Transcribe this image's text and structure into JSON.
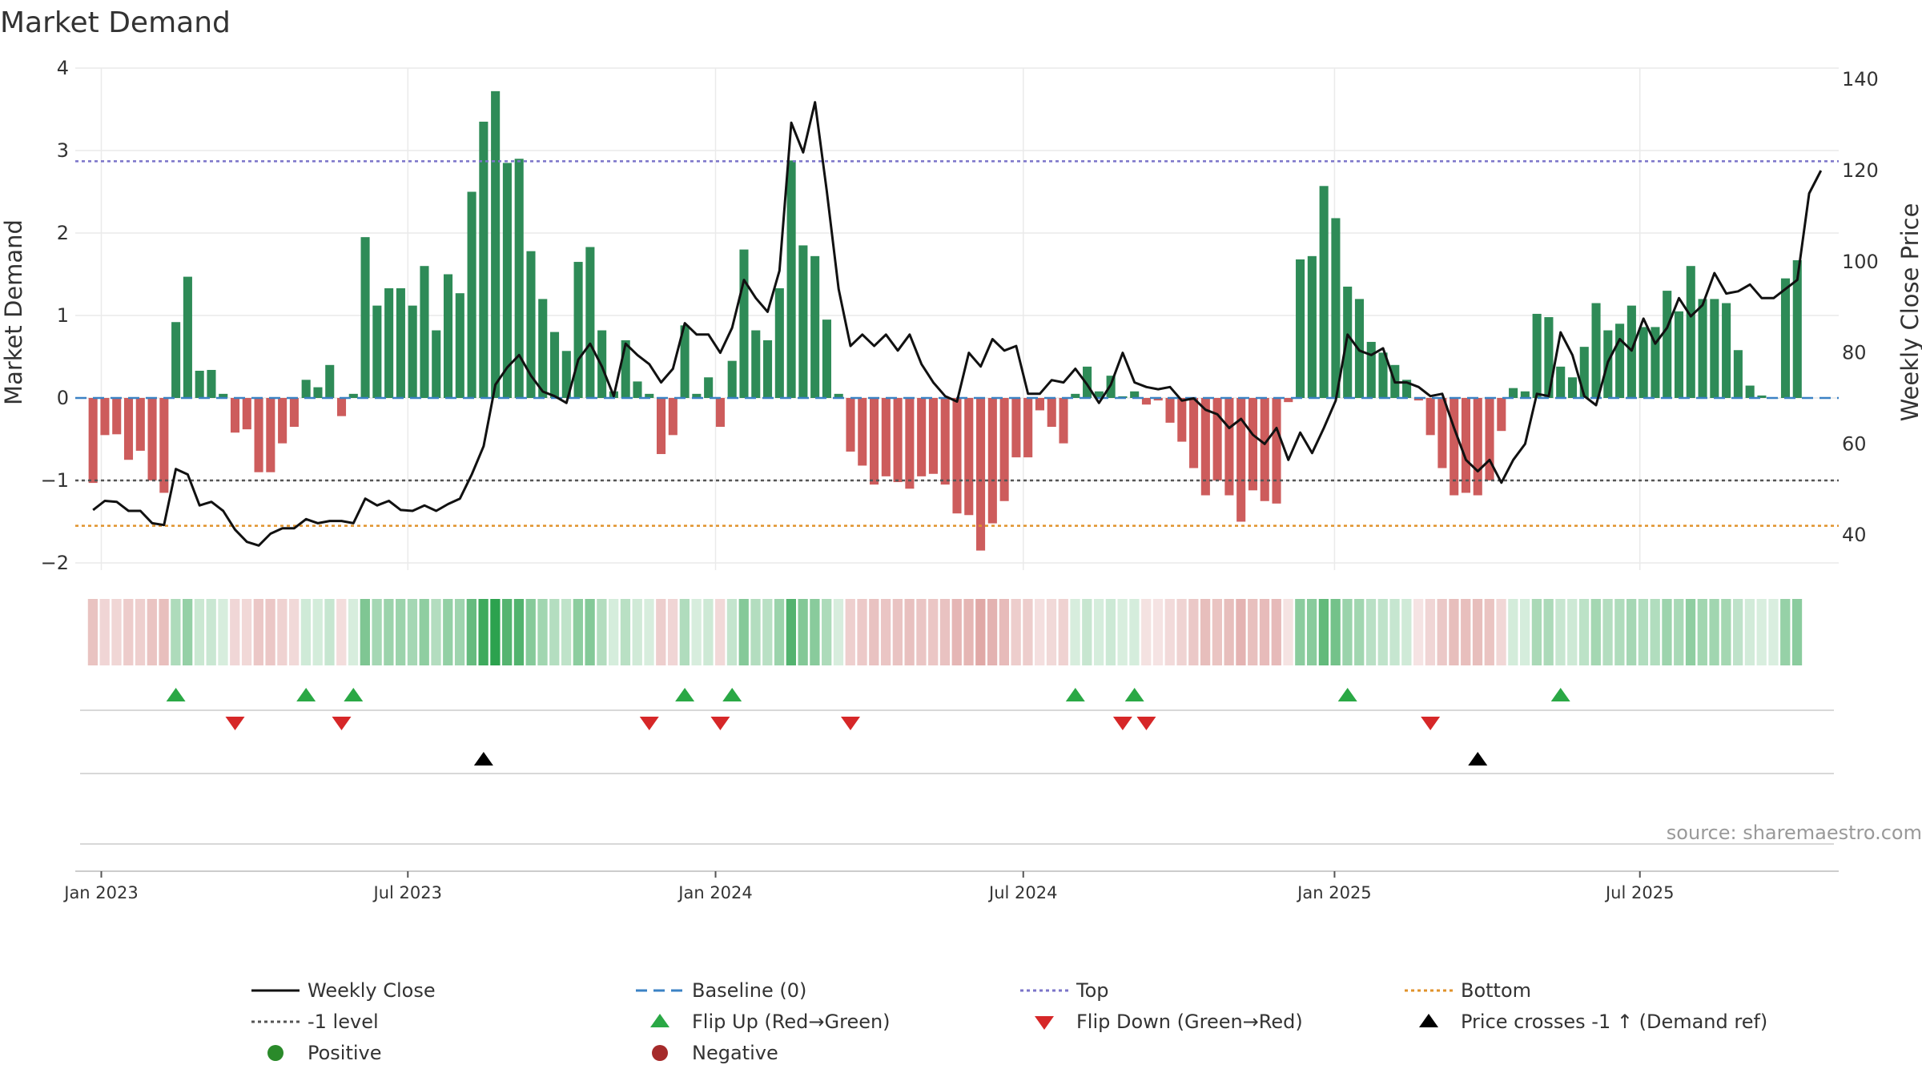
{
  "colors": {
    "positive": "#2e8b57",
    "negative": "#cd5c5c",
    "close": "#111111",
    "baseline": "#3b82c4",
    "top": "#7b74c9",
    "bottom": "#e0922b",
    "minus1": "#555555",
    "flip_up": "#2aa845",
    "flip_down": "#d62728",
    "cross": "#000000",
    "legend_positive": "#2a8a2a",
    "legend_negative": "#a52a2a"
  },
  "chart_data": {
    "type": "bar",
    "title": "Market Demand",
    "ylabel": "Market Demand",
    "y2label": "Weekly Close Price",
    "ylim": [
      -2.2,
      4
    ],
    "y2lim": [
      32.3,
      142.5
    ],
    "yticks": [
      "4",
      "3",
      "2",
      "1",
      "0",
      "−1",
      "−2"
    ],
    "y2ticks": [
      "140",
      "120",
      "100",
      "80",
      "60",
      "40"
    ],
    "x_range_weeks": [
      -1.5,
      147.5
    ],
    "x_ticks": [
      {
        "label": "Jan 2023",
        "week": 0.7
      },
      {
        "label": "Jul 2023",
        "week": 26.6
      },
      {
        "label": "Jan 2024",
        "week": 52.6
      },
      {
        "label": "Jul 2024",
        "week": 78.6
      },
      {
        "label": "Jan 2025",
        "week": 104.9
      },
      {
        "label": "Jul 2025",
        "week": 130.7
      }
    ],
    "reference_lines": {
      "top": 2.87,
      "bottom": -1.55,
      "minus1": -1.0,
      "baseline": 0
    },
    "demand": [
      -1.03,
      -0.45,
      -0.44,
      -0.75,
      -0.64,
      -1.0,
      -1.15,
      0.92,
      1.47,
      0.33,
      0.34,
      0.05,
      -0.42,
      -0.38,
      -0.9,
      -0.9,
      -0.55,
      -0.35,
      0.22,
      0.13,
      0.4,
      -0.22,
      0.05,
      1.95,
      1.12,
      1.33,
      1.33,
      1.12,
      1.6,
      0.82,
      1.5,
      1.27,
      2.5,
      3.35,
      3.72,
      2.85,
      2.9,
      1.78,
      1.2,
      0.8,
      0.57,
      1.65,
      1.83,
      0.82,
      0.08,
      0.7,
      0.2,
      0.05,
      -0.68,
      -0.45,
      0.88,
      0.05,
      0.25,
      -0.35,
      0.45,
      1.8,
      0.82,
      0.7,
      1.33,
      2.88,
      1.85,
      1.72,
      0.95,
      0.05,
      -0.65,
      -0.82,
      -1.05,
      -0.95,
      -1.02,
      -1.1,
      -0.95,
      -0.92,
      -1.05,
      -1.4,
      -1.42,
      -1.85,
      -1.52,
      -1.25,
      -0.72,
      -0.72,
      -0.15,
      -0.35,
      -0.55,
      0.05,
      0.38,
      0.08,
      0.27,
      0.02,
      0.08,
      -0.08,
      -0.03,
      -0.3,
      -0.53,
      -0.85,
      -1.18,
      -1.0,
      -1.18,
      -1.5,
      -1.12,
      -1.25,
      -1.28,
      -0.05,
      1.68,
      1.72,
      2.57,
      2.18,
      1.35,
      1.2,
      0.68,
      0.55,
      0.4,
      0.22,
      -0.03,
      -0.45,
      -0.85,
      -1.18,
      -1.15,
      -1.18,
      -1.0,
      -0.4,
      0.12,
      0.08,
      1.02,
      0.98,
      0.38,
      0.25,
      0.62,
      1.15,
      0.82,
      0.9,
      1.12,
      0.86,
      0.86,
      1.3,
      1.05,
      1.6,
      1.2,
      1.2,
      1.15,
      0.58,
      0.15,
      0.03,
      0.0,
      1.45,
      1.67
    ],
    "close": [
      45.5,
      47.5,
      47.3,
      45.3,
      45.3,
      42.6,
      42.2,
      54.5,
      53.3,
      46.5,
      47.3,
      45.3,
      41.2,
      38.5,
      37.7,
      40.3,
      41.5,
      41.5,
      43.5,
      42.6,
      43.1,
      43.1,
      42.6,
      48.0,
      46.5,
      47.5,
      45.5,
      45.3,
      46.5,
      45.3,
      46.8,
      48.0,
      53.3,
      59.5,
      73.0,
      76.8,
      79.5,
      75.0,
      71.5,
      70.5,
      69.0,
      78.5,
      82.0,
      77.0,
      70.5,
      82.0,
      79.5,
      77.5,
      73.5,
      76.5,
      86.5,
      84.0,
      84.0,
      80.0,
      85.5,
      96.0,
      92.0,
      89.0,
      98.0,
      130.5,
      124.0,
      135.0,
      115.5,
      94.0,
      81.5,
      84.0,
      81.5,
      84.0,
      80.5,
      84.0,
      77.5,
      73.5,
      70.5,
      69.3,
      80.0,
      77.0,
      83.0,
      80.5,
      81.5,
      71.0,
      71.0,
      74.0,
      73.5,
      76.5,
      73.0,
      69.0,
      73.0,
      80.0,
      73.5,
      72.5,
      72.0,
      72.5,
      69.5,
      70.0,
      67.5,
      66.5,
      63.5,
      65.5,
      62.0,
      60.0,
      63.5,
      56.5,
      62.5,
      58.0,
      63.5,
      69.5,
      84.0,
      80.5,
      79.5,
      81.0,
      73.5,
      73.5,
      72.5,
      70.5,
      71.0,
      63.5,
      56.5,
      54.0,
      56.5,
      51.5,
      56.5,
      60.0,
      71.0,
      70.5,
      84.5,
      79.5,
      70.5,
      68.5,
      78.0,
      83.0,
      80.5,
      87.5,
      82.0,
      85.5,
      92.0,
      88.0,
      90.5,
      97.5,
      93.0,
      93.5,
      95.0,
      92.0,
      92.0,
      94.0,
      96.0,
      115.0,
      120.0
    ],
    "flip_up_weeks": [
      7,
      18,
      22,
      50,
      54,
      83,
      88,
      106,
      124
    ],
    "flip_down_weeks": [
      12,
      21,
      47,
      53,
      64,
      87,
      89,
      113
    ],
    "price_cross_weeks": [
      33,
      117
    ],
    "source": "source: sharemaestro.com",
    "legend": [
      {
        "label": "Weekly Close",
        "kind": "line",
        "color_key": "close"
      },
      {
        "label": "Baseline (0)",
        "kind": "dash",
        "color_key": "baseline"
      },
      {
        "label": "Top",
        "kind": "dot",
        "color_key": "top"
      },
      {
        "label": "Bottom",
        "kind": "dot",
        "color_key": "bottom"
      },
      {
        "label": "-1 level",
        "kind": "dot",
        "color_key": "minus1"
      },
      {
        "label": "Flip Up (Red→Green)",
        "kind": "tri-up",
        "color_key": "flip_up"
      },
      {
        "label": "Flip Down (Green→Red)",
        "kind": "tri-down",
        "color_key": "flip_down"
      },
      {
        "label": "Price crosses -1 ↑ (Demand ref)",
        "kind": "tri-up",
        "color_key": "cross"
      },
      {
        "label": "Positive",
        "kind": "circle",
        "color_key": "legend_positive"
      },
      {
        "label": "Negative",
        "kind": "circle",
        "color_key": "legend_negative"
      }
    ]
  }
}
